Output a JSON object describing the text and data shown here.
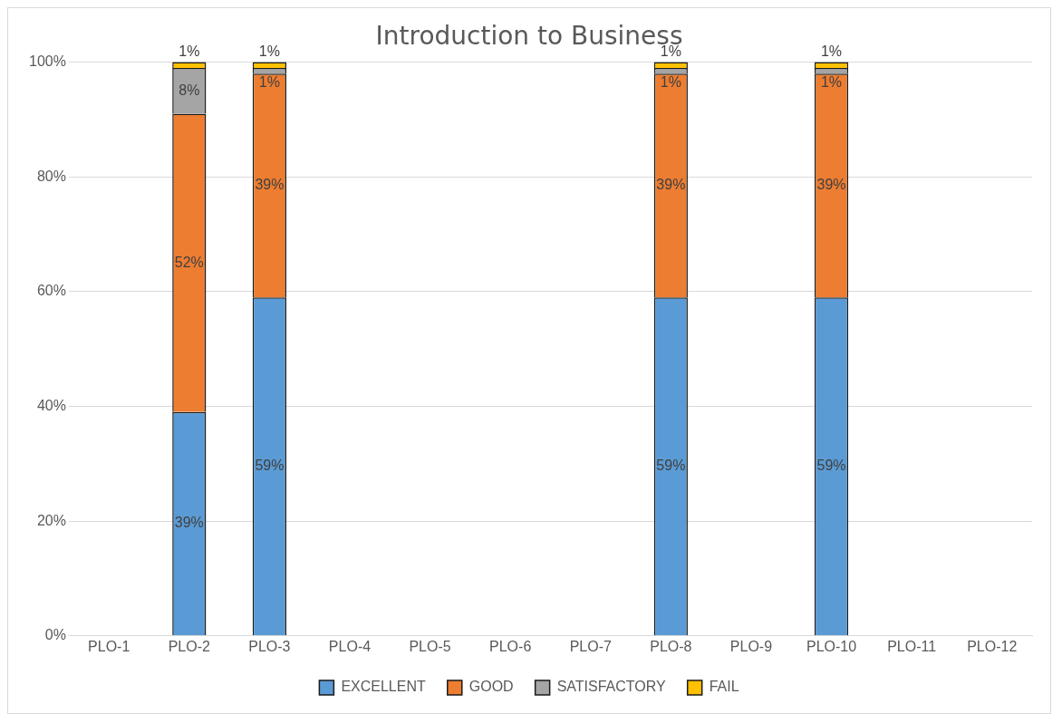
{
  "chart_data": {
    "type": "bar",
    "title": "Introduction to Business",
    "stacked": true,
    "legend": "bottom",
    "grid": "y",
    "categories": [
      "PLO-1",
      "PLO-2",
      "PLO-3",
      "PLO-4",
      "PLO-5",
      "PLO-6",
      "PLO-7",
      "PLO-8",
      "PLO-9",
      "PLO-10",
      "PLO-11",
      "PLO-12"
    ],
    "ylim": [
      0,
      100
    ],
    "yticks": [
      {
        "value": 0,
        "label": "0%"
      },
      {
        "value": 20,
        "label": "20%"
      },
      {
        "value": 40,
        "label": "40%"
      },
      {
        "value": 60,
        "label": "60%"
      },
      {
        "value": 80,
        "label": "80%"
      },
      {
        "value": 100,
        "label": "100%"
      }
    ],
    "series": [
      {
        "name": "EXCELLENT",
        "color": "#5b9bd5",
        "values": [
          null,
          39,
          59,
          null,
          null,
          null,
          null,
          59,
          null,
          59,
          null,
          null
        ],
        "value_labels": [
          null,
          "39%",
          "59%",
          null,
          null,
          null,
          null,
          "59%",
          null,
          "59%",
          null,
          null
        ]
      },
      {
        "name": "GOOD",
        "color": "#ed7d31",
        "values": [
          null,
          52,
          39,
          null,
          null,
          null,
          null,
          39,
          null,
          39,
          null,
          null
        ],
        "value_labels": [
          null,
          "52%",
          "39%",
          null,
          null,
          null,
          null,
          "39%",
          null,
          "39%",
          null,
          null
        ]
      },
      {
        "name": "SATISFACTORY",
        "color": "#a5a5a5",
        "values": [
          null,
          8,
          1,
          null,
          null,
          null,
          null,
          1,
          null,
          1,
          null,
          null
        ],
        "value_labels": [
          null,
          "8%",
          "1%",
          null,
          null,
          null,
          null,
          "1%",
          null,
          "1%",
          null,
          null
        ]
      },
      {
        "name": "FAIL",
        "color": "#ffc000",
        "values": [
          null,
          1,
          1,
          null,
          null,
          null,
          null,
          1,
          null,
          1,
          null,
          null
        ],
        "value_labels": [
          null,
          "1%",
          "1%",
          null,
          null,
          null,
          null,
          "1%",
          null,
          "1%",
          null,
          null
        ]
      }
    ]
  }
}
